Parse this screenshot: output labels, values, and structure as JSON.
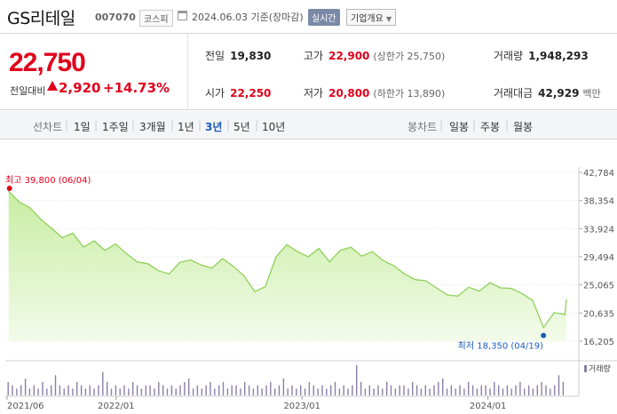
{
  "header": {
    "name": "GS리테일",
    "code": "007070",
    "market": "코스피",
    "date": "2024.06.03 기준(장마감)",
    "realtime_label": "실시간",
    "info_button": "기업개요"
  },
  "quote": {
    "price": "22,750",
    "change_label": "전일대비",
    "change": "2,920",
    "change_pct": "+14.73%",
    "prev_close_label": "전일",
    "prev_close": "19,830",
    "high_label": "고가",
    "high": "22,900",
    "upper_limit": "(상한가 25,750)",
    "volume_label": "거래량",
    "volume": "1,948,293",
    "open_label": "시가",
    "open": "22,250",
    "low_label": "저가",
    "low": "20,800",
    "lower_limit": "(하한가 13,890)",
    "amount_label": "거래대금",
    "amount": "42,929",
    "amount_unit": "백만"
  },
  "tabs": {
    "line_chart_title": "선차트",
    "periods": [
      "1일",
      "1주일",
      "3개월",
      "1년",
      "3년",
      "5년",
      "10년"
    ],
    "active_period": "3년",
    "candle_chart_title": "봉차트",
    "candles": [
      "일봉",
      "주봉",
      "월봉"
    ]
  },
  "chart_data": {
    "type": "area",
    "y_ticks": [
      "42,784",
      "38,354",
      "33,924",
      "29,494",
      "25,065",
      "20,635",
      "16,205"
    ],
    "ylim": [
      16205,
      42784
    ],
    "x_ticks": [
      "2021/06",
      "2022/01",
      "2023/01",
      "2024/01"
    ],
    "max_annotation": "최고 39,800 (06/04)",
    "min_annotation": "최저 18,350 (04/19)",
    "volume_label": "거래량",
    "colors": {
      "line": "#8fd15a",
      "fill_top": "#c7eda2",
      "fill_bottom": "#f3fbea",
      "max": "#e0001b",
      "min": "#1a5bb8",
      "volume": "#8a7fa8"
    },
    "series": [
      {
        "x": [
          "2021-06-04",
          "2021-06-25",
          "2021-07-16",
          "2021-08-06",
          "2021-08-27",
          "2021-09-17",
          "2021-10-08",
          "2021-10-29",
          "2021-11-19",
          "2021-12-10",
          "2021-12-31",
          "2022-01-21",
          "2022-02-11",
          "2022-03-04",
          "2022-03-25",
          "2022-04-15",
          "2022-05-06",
          "2022-05-27",
          "2022-06-17",
          "2022-07-08",
          "2022-07-29",
          "2022-08-19",
          "2022-09-09",
          "2022-09-30",
          "2022-10-21",
          "2022-11-11",
          "2022-12-02",
          "2022-12-23",
          "2023-01-13",
          "2023-02-03",
          "2023-02-24",
          "2023-03-17",
          "2023-04-07",
          "2023-04-28",
          "2023-05-19",
          "2023-06-09",
          "2023-06-30",
          "2023-07-21",
          "2023-08-11",
          "2023-09-01",
          "2023-09-22",
          "2023-10-13",
          "2023-11-03",
          "2023-11-24",
          "2023-12-15",
          "2024-01-05",
          "2024-01-26",
          "2024-02-16",
          "2024-03-08",
          "2024-03-29",
          "2024-04-19",
          "2024-05-10",
          "2024-05-31",
          "2024-06-03"
        ],
        "values": [
          39800,
          38100,
          37200,
          35400,
          34000,
          32500,
          33200,
          31000,
          32000,
          30500,
          31500,
          30000,
          28700,
          28400,
          27300,
          26800,
          28600,
          29000,
          28200,
          27700,
          29200,
          28000,
          26500,
          24000,
          24800,
          29500,
          31400,
          30300,
          29500,
          30800,
          28700,
          30500,
          31000,
          29600,
          30300,
          28900,
          28100,
          26800,
          25900,
          25700,
          24600,
          23500,
          23300,
          24700,
          24100,
          25400,
          24600,
          24500,
          23700,
          22600,
          18350,
          20700,
          20400,
          22750
        ]
      }
    ],
    "volume_series": [
      4,
      3,
      2,
      3,
      5,
      2,
      3,
      2,
      4,
      2,
      3,
      6,
      3,
      2,
      3,
      2,
      4,
      3,
      2,
      3,
      2,
      3,
      7,
      4,
      2,
      3,
      2,
      3,
      2,
      4,
      3,
      2,
      3,
      3,
      2,
      4,
      3,
      2,
      3,
      2,
      3,
      4,
      5,
      2,
      3,
      2,
      3,
      4,
      2,
      3,
      4,
      2,
      3,
      3,
      2,
      4,
      3,
      2,
      3,
      2,
      3,
      4,
      2,
      3,
      5,
      2,
      3,
      2,
      3,
      2,
      4,
      3,
      2,
      3,
      2,
      3,
      4,
      2,
      3,
      2,
      3,
      9,
      4,
      2,
      3,
      2,
      3,
      2,
      4,
      3,
      2,
      3,
      3,
      2,
      4,
      3,
      2,
      3,
      2,
      3,
      4,
      5,
      2,
      3,
      2,
      3,
      2,
      4,
      3,
      2,
      3,
      3,
      2,
      4,
      3,
      2,
      3,
      2,
      3,
      4,
      2,
      3,
      2,
      3,
      4,
      3,
      2,
      3,
      6,
      4
    ]
  }
}
